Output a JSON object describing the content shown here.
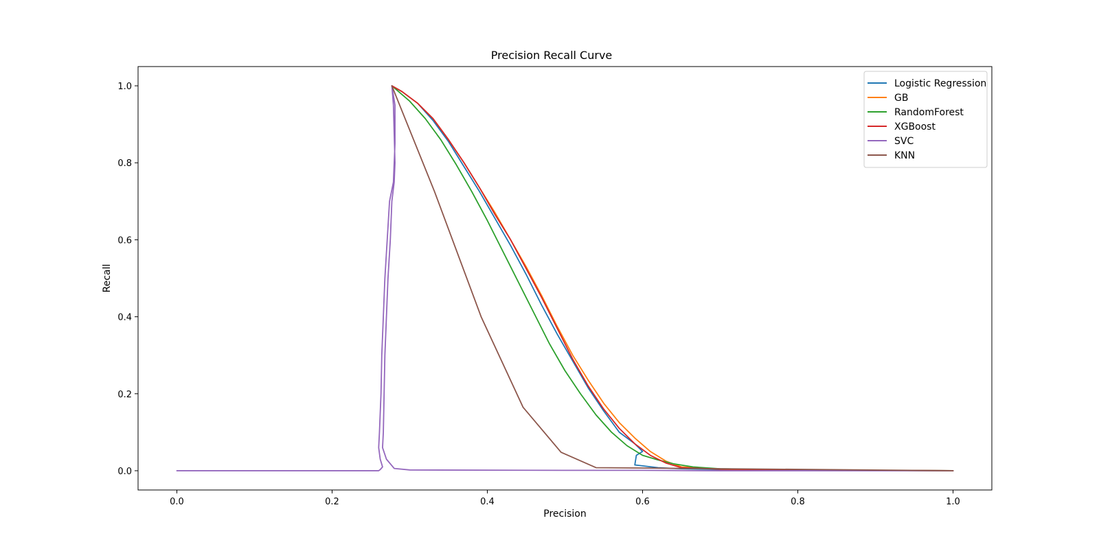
{
  "chart_data": {
    "type": "line",
    "title": "Precision Recall Curve",
    "xlabel": "Precision",
    "ylabel": "Recall",
    "xlim": [
      -0.05,
      1.05
    ],
    "ylim": [
      -0.05,
      1.05
    ],
    "xticks": [
      0.0,
      0.2,
      0.4,
      0.6,
      0.8,
      1.0
    ],
    "xtick_labels": [
      "0.0",
      "0.2",
      "0.4",
      "0.6",
      "0.8",
      "1.0"
    ],
    "yticks": [
      0.0,
      0.2,
      0.4,
      0.6,
      0.8,
      1.0
    ],
    "ytick_labels": [
      "0.0",
      "0.2",
      "0.4",
      "0.6",
      "0.8",
      "1.0"
    ],
    "grid": false,
    "legend_position": "top-right",
    "series": [
      {
        "name": "Logistic Regression",
        "color": "#1f77b4",
        "points": [
          [
            0.277,
            1.0
          ],
          [
            0.29,
            0.985
          ],
          [
            0.31,
            0.955
          ],
          [
            0.33,
            0.91
          ],
          [
            0.35,
            0.855
          ],
          [
            0.37,
            0.79
          ],
          [
            0.39,
            0.725
          ],
          [
            0.41,
            0.655
          ],
          [
            0.43,
            0.585
          ],
          [
            0.45,
            0.51
          ],
          [
            0.47,
            0.43
          ],
          [
            0.49,
            0.355
          ],
          [
            0.51,
            0.285
          ],
          [
            0.53,
            0.215
          ],
          [
            0.55,
            0.155
          ],
          [
            0.57,
            0.1
          ],
          [
            0.59,
            0.07
          ],
          [
            0.6,
            0.05
          ],
          [
            0.592,
            0.04
          ],
          [
            0.59,
            0.015
          ],
          [
            0.62,
            0.008
          ],
          [
            0.65,
            0.005
          ],
          [
            0.7,
            0.003
          ],
          [
            0.8,
            0.002
          ],
          [
            0.9,
            0.001
          ],
          [
            1.0,
            0.0
          ]
        ]
      },
      {
        "name": "GB",
        "color": "#ff7f0e",
        "points": [
          [
            0.277,
            1.0
          ],
          [
            0.29,
            0.985
          ],
          [
            0.31,
            0.955
          ],
          [
            0.33,
            0.915
          ],
          [
            0.35,
            0.86
          ],
          [
            0.37,
            0.8
          ],
          [
            0.39,
            0.735
          ],
          [
            0.41,
            0.67
          ],
          [
            0.43,
            0.6
          ],
          [
            0.45,
            0.53
          ],
          [
            0.47,
            0.455
          ],
          [
            0.49,
            0.375
          ],
          [
            0.51,
            0.3
          ],
          [
            0.53,
            0.235
          ],
          [
            0.55,
            0.175
          ],
          [
            0.57,
            0.125
          ],
          [
            0.59,
            0.085
          ],
          [
            0.61,
            0.05
          ],
          [
            0.63,
            0.025
          ],
          [
            0.65,
            0.01
          ],
          [
            0.7,
            0.004
          ],
          [
            0.8,
            0.002
          ],
          [
            0.9,
            0.001
          ],
          [
            1.0,
            0.0
          ]
        ]
      },
      {
        "name": "RandomForest",
        "color": "#2ca02c",
        "points": [
          [
            0.277,
            1.0
          ],
          [
            0.3,
            0.96
          ],
          [
            0.32,
            0.915
          ],
          [
            0.34,
            0.86
          ],
          [
            0.36,
            0.795
          ],
          [
            0.38,
            0.725
          ],
          [
            0.4,
            0.65
          ],
          [
            0.42,
            0.57
          ],
          [
            0.44,
            0.49
          ],
          [
            0.46,
            0.41
          ],
          [
            0.48,
            0.33
          ],
          [
            0.5,
            0.26
          ],
          [
            0.52,
            0.2
          ],
          [
            0.54,
            0.145
          ],
          [
            0.56,
            0.1
          ],
          [
            0.58,
            0.065
          ],
          [
            0.6,
            0.04
          ],
          [
            0.62,
            0.028
          ],
          [
            0.64,
            0.018
          ],
          [
            0.665,
            0.01
          ],
          [
            0.7,
            0.005
          ],
          [
            0.8,
            0.002
          ],
          [
            0.9,
            0.001
          ],
          [
            1.0,
            0.0
          ]
        ]
      },
      {
        "name": "XGBoost",
        "color": "#d62728",
        "points": [
          [
            0.277,
            1.0
          ],
          [
            0.29,
            0.985
          ],
          [
            0.31,
            0.955
          ],
          [
            0.33,
            0.915
          ],
          [
            0.35,
            0.86
          ],
          [
            0.37,
            0.8
          ],
          [
            0.39,
            0.735
          ],
          [
            0.41,
            0.665
          ],
          [
            0.43,
            0.6
          ],
          [
            0.45,
            0.525
          ],
          [
            0.47,
            0.45
          ],
          [
            0.49,
            0.37
          ],
          [
            0.51,
            0.29
          ],
          [
            0.53,
            0.22
          ],
          [
            0.55,
            0.16
          ],
          [
            0.57,
            0.11
          ],
          [
            0.59,
            0.07
          ],
          [
            0.61,
            0.04
          ],
          [
            0.63,
            0.02
          ],
          [
            0.65,
            0.008
          ],
          [
            0.7,
            0.004
          ],
          [
            0.8,
            0.002
          ],
          [
            0.9,
            0.001
          ],
          [
            1.0,
            0.0
          ]
        ]
      },
      {
        "name": "SVC",
        "color": "#9467bd",
        "points": [
          [
            0.0,
            0.0
          ],
          [
            0.26,
            0.0
          ],
          [
            0.262,
            0.003
          ],
          [
            0.265,
            0.01
          ],
          [
            0.262,
            0.03
          ],
          [
            0.26,
            0.06
          ],
          [
            0.261,
            0.1
          ],
          [
            0.262,
            0.15
          ],
          [
            0.263,
            0.2
          ],
          [
            0.264,
            0.3
          ],
          [
            0.266,
            0.4
          ],
          [
            0.268,
            0.5
          ],
          [
            0.271,
            0.6
          ],
          [
            0.274,
            0.7
          ],
          [
            0.279,
            0.75
          ],
          [
            0.281,
            0.85
          ],
          [
            0.281,
            0.95
          ],
          [
            0.277,
            1.0
          ],
          [
            0.279,
            0.95
          ],
          [
            0.281,
            0.8
          ],
          [
            0.28,
            0.75
          ],
          [
            0.277,
            0.7
          ],
          [
            0.275,
            0.6
          ],
          [
            0.272,
            0.5
          ],
          [
            0.27,
            0.4
          ],
          [
            0.268,
            0.3
          ],
          [
            0.267,
            0.2
          ],
          [
            0.266,
            0.1
          ],
          [
            0.265,
            0.06
          ],
          [
            0.27,
            0.03
          ],
          [
            0.28,
            0.006
          ],
          [
            0.3,
            0.002
          ],
          [
            0.5,
            0.001
          ],
          [
            0.6,
            0.001
          ],
          [
            0.7,
            0.0
          ],
          [
            1.0,
            0.0
          ]
        ]
      },
      {
        "name": "KNN",
        "color": "#8c564b",
        "points": [
          [
            0.277,
            1.0
          ],
          [
            0.332,
            0.725
          ],
          [
            0.392,
            0.4
          ],
          [
            0.446,
            0.165
          ],
          [
            0.495,
            0.048
          ],
          [
            0.54,
            0.008
          ],
          [
            0.6,
            0.007
          ],
          [
            1.0,
            0.0
          ]
        ]
      }
    ]
  }
}
